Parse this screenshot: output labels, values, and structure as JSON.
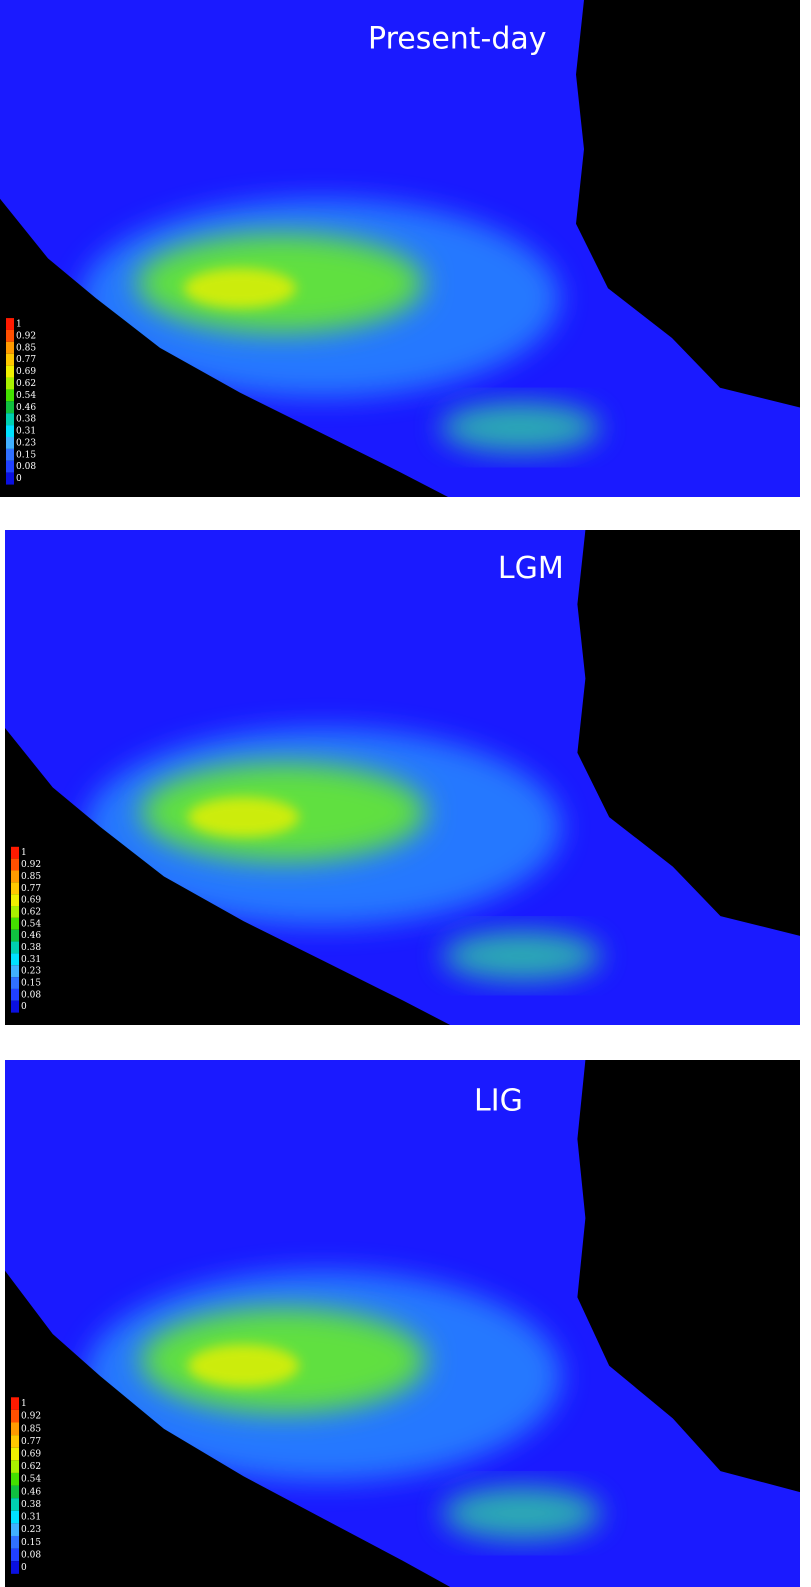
{
  "panels": [
    {
      "title": "Present-day",
      "legend": [
        1,
        0.92,
        0.85,
        0.77,
        0.69,
        0.62,
        0.54,
        0.46,
        0.38,
        0.31,
        0.23,
        0.15,
        0.08,
        0
      ]
    },
    {
      "title": "LGM",
      "legend": [
        1,
        0.92,
        0.85,
        0.77,
        0.69,
        0.62,
        0.54,
        0.46,
        0.38,
        0.31,
        0.23,
        0.15,
        0.08,
        0
      ]
    },
    {
      "title": "LIG",
      "legend": [
        1,
        0.92,
        0.85,
        0.77,
        0.69,
        0.62,
        0.54,
        0.46,
        0.38,
        0.31,
        0.23,
        0.15,
        0.08,
        0
      ]
    }
  ],
  "legend_colors": [
    "#ff1a00",
    "#ff5000",
    "#ff9a00",
    "#ffc800",
    "#f0f000",
    "#a8f000",
    "#44e000",
    "#10c040",
    "#00d0b0",
    "#00e0ff",
    "#40b0ff",
    "#3070ff",
    "#2040ff",
    "#0a10e0"
  ]
}
